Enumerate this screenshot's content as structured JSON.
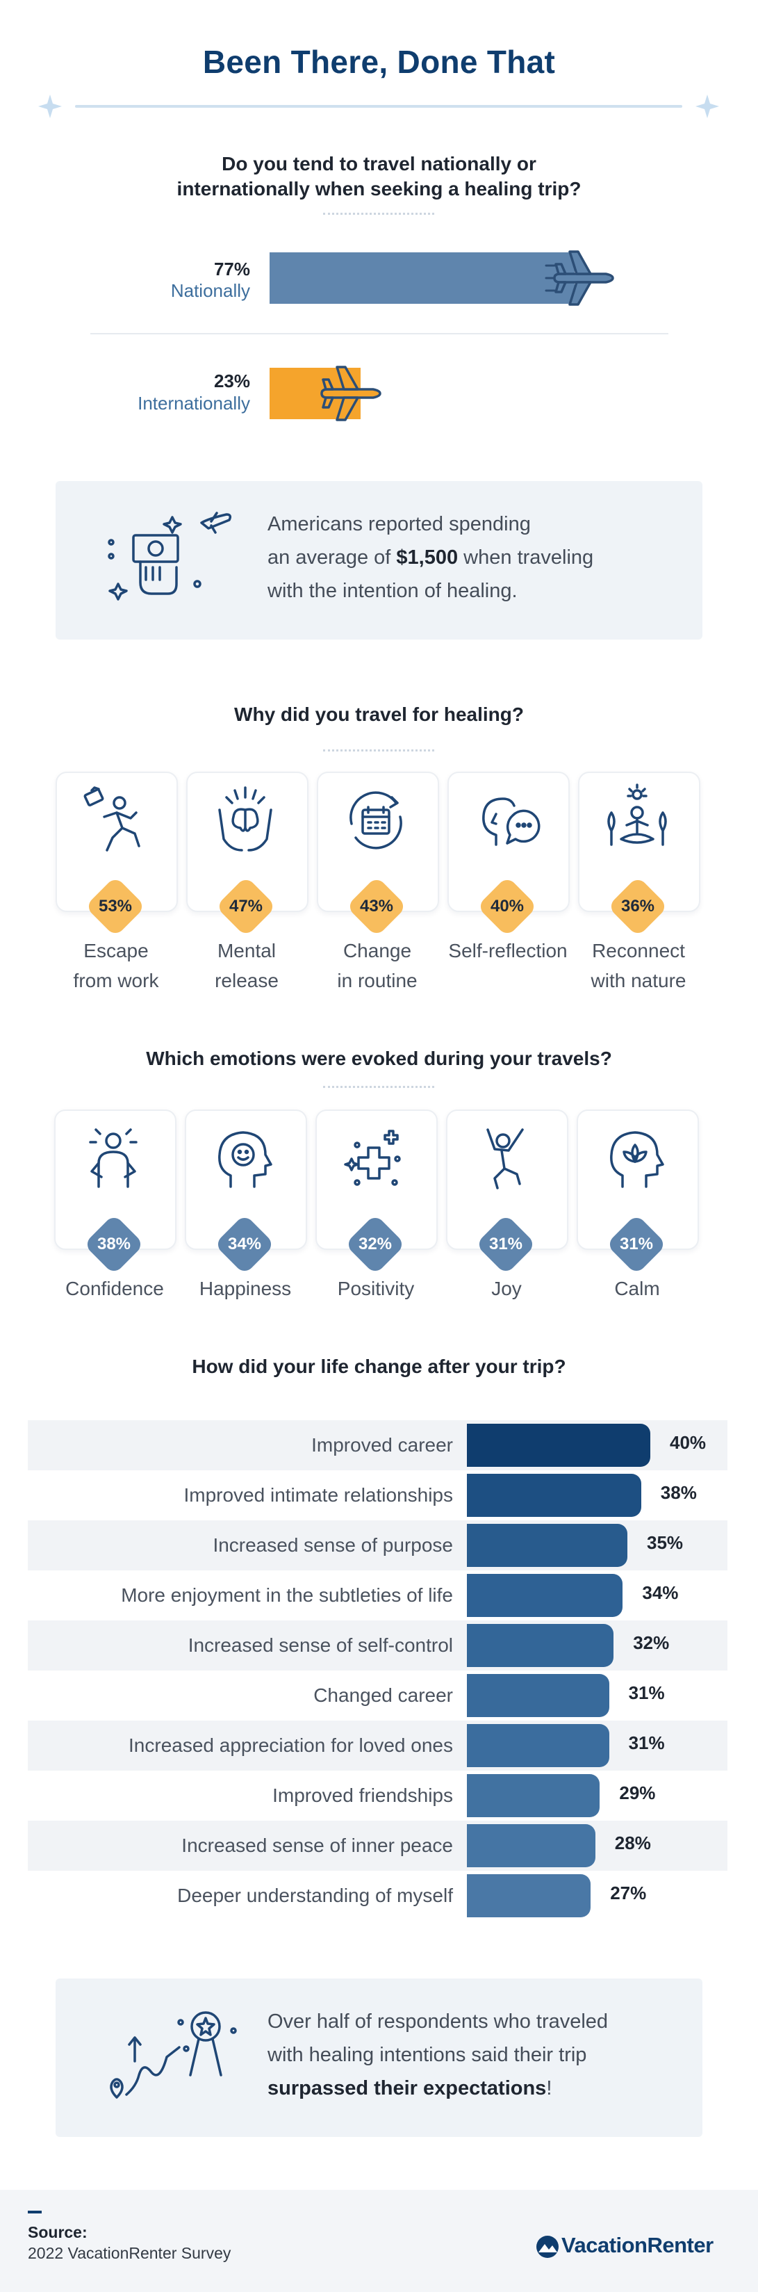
{
  "header": {
    "title": "Been There, Done That"
  },
  "travel_section": {
    "question_line1": "Do you tend to travel nationally or",
    "question_line2": "internationally when seeking a healing trip?",
    "items": [
      {
        "pct": "77%",
        "label": "Nationally",
        "value": 77,
        "color": "#5f85ad"
      },
      {
        "pct": "23%",
        "label": "Internationally",
        "value": 23,
        "color": "#f5a42c"
      }
    ]
  },
  "spending_callout": {
    "line1": "Americans reported spending",
    "line2_prefix": "an average of ",
    "line2_amount": "$1,500",
    "line2_suffix": " when traveling",
    "line3": "with the intention of healing."
  },
  "reasons_section": {
    "question": "Why did you travel for healing?",
    "accent": "#f8bd5d",
    "items": [
      {
        "pct": "53%",
        "label_line1": "Escape",
        "label_line2": "from work",
        "icon": "running-person-icon"
      },
      {
        "pct": "47%",
        "label_line1": "Mental",
        "label_line2": "release",
        "icon": "brain-hands-icon"
      },
      {
        "pct": "43%",
        "label_line1": "Change",
        "label_line2": "in routine",
        "icon": "calendar-cycle-icon"
      },
      {
        "pct": "40%",
        "label_line1": "Self-reflection",
        "label_line2": "",
        "icon": "head-thought-icon"
      },
      {
        "pct": "36%",
        "label_line1": "Reconnect",
        "label_line2": "with nature",
        "icon": "meditation-nature-icon"
      }
    ]
  },
  "emotions_section": {
    "question": "Which emotions were evoked during your travels?",
    "accent": "#5f85ad",
    "items": [
      {
        "pct": "38%",
        "label": "Confidence",
        "icon": "confident-person-icon"
      },
      {
        "pct": "34%",
        "label": "Happiness",
        "icon": "smiling-head-icon"
      },
      {
        "pct": "32%",
        "label": "Positivity",
        "icon": "plus-sparkle-icon"
      },
      {
        "pct": "31%",
        "label": "Joy",
        "icon": "jumping-person-icon"
      },
      {
        "pct": "31%",
        "label": "Calm",
        "icon": "lotus-head-icon"
      }
    ]
  },
  "chart_data": {
    "type": "bar",
    "orientation": "horizontal",
    "title": "How did your life change after your trip?",
    "categories": [
      "Improved career",
      "Improved intimate relationships",
      "Increased sense of purpose",
      "More enjoyment in the subtleties of life",
      "Increased sense of self-control",
      "Changed career",
      "Increased appreciation for loved ones",
      "Improved friendships",
      "Increased sense of inner peace",
      "Deeper understanding of myself"
    ],
    "values": [
      40,
      38,
      35,
      34,
      32,
      31,
      31,
      29,
      28,
      27
    ],
    "value_labels": [
      "40%",
      "38%",
      "35%",
      "34%",
      "32%",
      "31%",
      "31%",
      "29%",
      "28%",
      "27%"
    ],
    "colors": [
      "#0f3d6e",
      "#1d4f82",
      "#285b8d",
      "#2e6194",
      "#336698",
      "#386a9b",
      "#3b6d9e",
      "#4172a1",
      "#4575a4",
      "#4a78a6"
    ]
  },
  "expectations_callout": {
    "line1": "Over half of respondents who traveled",
    "line2": "with healing intentions said their trip",
    "line3_bold": "surpassed their expectations",
    "line3_end": "!"
  },
  "footer": {
    "source_label": "Source:",
    "source_text": "2022 VacationRenter Survey",
    "brand": "VacationRenter"
  }
}
